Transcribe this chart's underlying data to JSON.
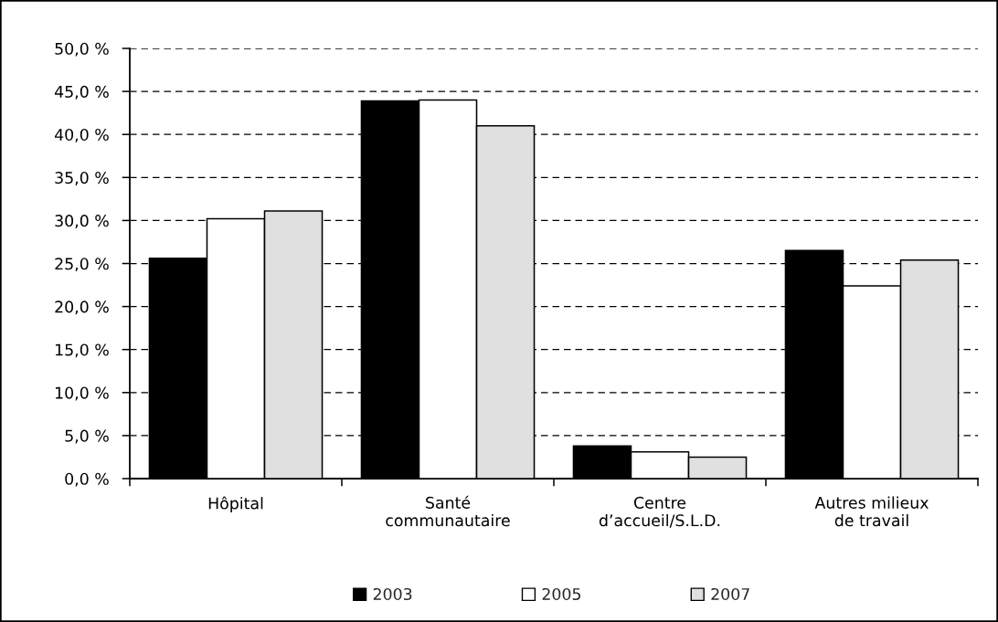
{
  "chart_data": {
    "type": "bar",
    "categories": [
      "Hôpital",
      "Santé\ncommunautaire",
      "Centre\nd’accueil/S.L.D.",
      "Autres milieux\nde travail"
    ],
    "series": [
      {
        "name": "2003",
        "color": "#000000",
        "values": [
          25.6,
          43.9,
          3.8,
          26.5
        ]
      },
      {
        "name": "2005",
        "color": "#ffffff",
        "values": [
          30.2,
          44.0,
          3.1,
          22.4
        ]
      },
      {
        "name": "2007",
        "color": "#e0e0e0",
        "values": [
          31.1,
          41.0,
          2.5,
          25.4
        ]
      }
    ],
    "ylim": [
      0,
      50
    ],
    "yticks": [
      {
        "value": 0,
        "label": "0,0 %"
      },
      {
        "value": 5,
        "label": "5,0 %"
      },
      {
        "value": 10,
        "label": "10,0 %"
      },
      {
        "value": 15,
        "label": "15,0 %"
      },
      {
        "value": 20,
        "label": "20,0 %"
      },
      {
        "value": 25,
        "label": "25,0 %"
      },
      {
        "value": 30,
        "label": "30,0 %"
      },
      {
        "value": 35,
        "label": "35,0 %"
      },
      {
        "value": 40,
        "label": "40,0 %"
      },
      {
        "value": 45,
        "label": "45,0 %"
      },
      {
        "value": 50,
        "label": "50,0 %"
      }
    ],
    "grid": "y",
    "legend": "bottom"
  }
}
